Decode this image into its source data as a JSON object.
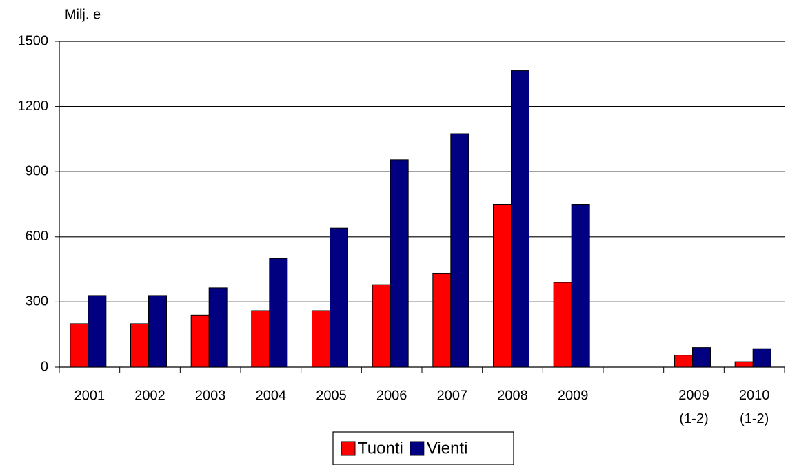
{
  "chart_data": {
    "type": "bar",
    "y_label": "Milj. e",
    "categories": [
      "2001",
      "2002",
      "2003",
      "2004",
      "2005",
      "2006",
      "2007",
      "2008",
      "2009",
      null,
      "2009\n(1-2)",
      "2010\n(1-2)"
    ],
    "series": [
      {
        "name": "Tuonti",
        "color": "#ff0000",
        "values": [
          200,
          200,
          240,
          260,
          260,
          380,
          430,
          750,
          390,
          null,
          55,
          25
        ]
      },
      {
        "name": "Vienti",
        "color": "#000080",
        "values": [
          330,
          330,
          365,
          500,
          640,
          955,
          1075,
          1365,
          750,
          null,
          90,
          85
        ]
      }
    ],
    "ylim": [
      0,
      1500
    ],
    "yticks": [
      0,
      300,
      600,
      900,
      1200,
      1500
    ],
    "grid": true,
    "legend": "bottom"
  }
}
